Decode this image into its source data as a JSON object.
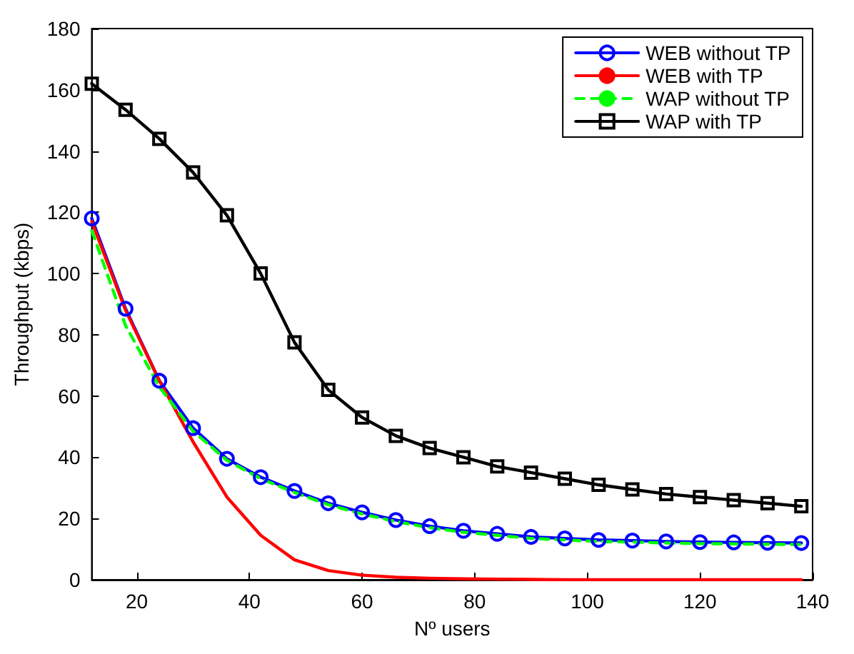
{
  "chart_data": {
    "type": "line",
    "xlabel": "Nº users",
    "ylabel": "Throughput (kbps)",
    "x": [
      12,
      18,
      24,
      30,
      36,
      42,
      48,
      54,
      60,
      66,
      72,
      78,
      84,
      90,
      96,
      102,
      108,
      114,
      120,
      126,
      132,
      138
    ],
    "xlim": [
      12,
      140
    ],
    "xticks": [
      20,
      40,
      60,
      80,
      100,
      120,
      140
    ],
    "ylim": [
      0,
      180
    ],
    "yticks": [
      0,
      20,
      40,
      60,
      80,
      100,
      120,
      140,
      160,
      180
    ],
    "grid": false,
    "legend": "top right",
    "series": [
      {
        "name": "WEB without TP",
        "color": "#0000ff",
        "marker": "circle",
        "line_style": "solid",
        "values": [
          118,
          88.5,
          65,
          49.5,
          39.5,
          33.5,
          29,
          25,
          22,
          19.5,
          17.5,
          16,
          15,
          14,
          13.5,
          13,
          12.8,
          12.5,
          12.3,
          12.2,
          12.1,
          12
        ]
      },
      {
        "name": "WEB with TP",
        "color": "#ff0000",
        "marker": "none",
        "line_style": "solid",
        "values": [
          117,
          88,
          65,
          45,
          27,
          14.5,
          6.5,
          3,
          1.5,
          0.8,
          0.5,
          0.3,
          0.2,
          0.1,
          0,
          0,
          0,
          0,
          0,
          0,
          0,
          0
        ]
      },
      {
        "name": "WAP without TP",
        "color": "#00ff00",
        "marker": "none",
        "line_style": "dashed",
        "values": [
          114,
          83,
          63,
          48.5,
          39,
          33,
          28.5,
          24.5,
          21.5,
          19,
          17,
          15.5,
          14.5,
          13.5,
          13,
          12.5,
          12.3,
          12,
          11.8,
          11.7,
          11.6,
          11.5
        ]
      },
      {
        "name": "WAP with TP",
        "color": "#000000",
        "marker": "square",
        "line_style": "solid",
        "values": [
          162,
          153.5,
          144,
          133,
          119,
          100,
          77.5,
          62,
          53,
          47,
          43,
          40,
          37,
          35,
          33,
          31,
          29.5,
          28,
          27,
          26,
          25,
          24
        ]
      }
    ]
  }
}
